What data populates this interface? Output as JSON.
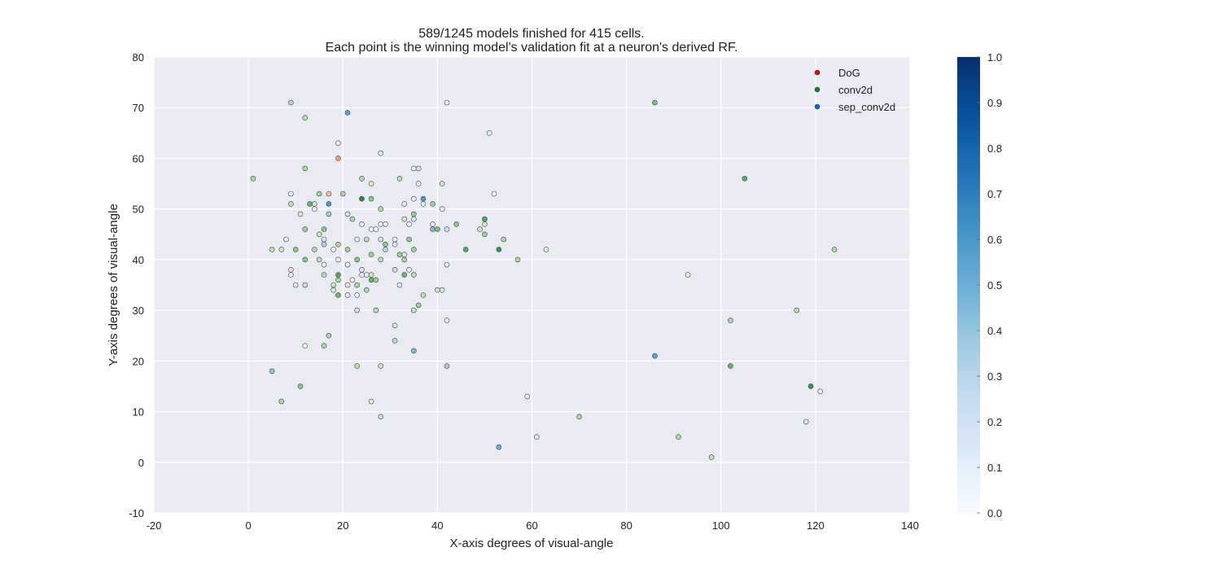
{
  "chart_data": {
    "type": "scatter",
    "title": "589/1245 models finished for 415 cells.",
    "subtitle": "Each point is the winning model's validation fit at a neuron's derived RF.",
    "xlabel": "X-axis degrees of visual-angle",
    "ylabel": "Y-axis degrees of visual-angle",
    "xlim": [
      -20,
      140
    ],
    "ylim": [
      -10,
      80
    ],
    "xticks": [
      -20,
      0,
      20,
      40,
      60,
      80,
      100,
      120,
      140
    ],
    "yticks": [
      -10,
      0,
      10,
      20,
      30,
      40,
      50,
      60,
      70,
      80
    ],
    "grid": true,
    "legend_position": "top-right",
    "colorbar": {
      "min": 0.0,
      "max": 1.0,
      "ticks": [
        "0.0",
        "0.1",
        "0.2",
        "0.3",
        "0.4",
        "0.5",
        "0.6",
        "0.7",
        "0.8",
        "0.9",
        "1.0"
      ],
      "colormap": "Blues"
    },
    "series": [
      {
        "name": "DoG",
        "colormap": "Reds",
        "legend_color": "#c0141a",
        "points": [
          {
            "x": 19,
            "y": 60,
            "v": 0.35
          },
          {
            "x": 17,
            "y": 53,
            "v": 0.25
          },
          {
            "x": 9,
            "y": 38,
            "v": 0.15
          },
          {
            "x": 21,
            "y": 35,
            "v": 0.12
          },
          {
            "x": 42,
            "y": 28,
            "v": 0.1
          }
        ]
      },
      {
        "name": "conv2d",
        "colormap": "Greens",
        "legend_color": "#1a7a35",
        "points": [
          {
            "x": 1,
            "y": 56,
            "v": 0.35
          },
          {
            "x": 12,
            "y": 68,
            "v": 0.3
          },
          {
            "x": 12,
            "y": 58,
            "v": 0.35
          },
          {
            "x": 13,
            "y": 51,
            "v": 0.55
          },
          {
            "x": 15,
            "y": 53,
            "v": 0.4
          },
          {
            "x": 14,
            "y": 51,
            "v": 0.2
          },
          {
            "x": 11,
            "y": 49,
            "v": 0.2
          },
          {
            "x": 9,
            "y": 51,
            "v": 0.3
          },
          {
            "x": 20,
            "y": 53,
            "v": 0.35
          },
          {
            "x": 24,
            "y": 56,
            "v": 0.35
          },
          {
            "x": 26,
            "y": 55,
            "v": 0.2
          },
          {
            "x": 24,
            "y": 52,
            "v": 0.75
          },
          {
            "x": 26,
            "y": 52,
            "v": 0.45
          },
          {
            "x": 28,
            "y": 50,
            "v": 0.35
          },
          {
            "x": 32,
            "y": 56,
            "v": 0.3
          },
          {
            "x": 35,
            "y": 49,
            "v": 0.4
          },
          {
            "x": 39,
            "y": 51,
            "v": 0.4
          },
          {
            "x": 41,
            "y": 55,
            "v": 0.25
          },
          {
            "x": 40,
            "y": 46,
            "v": 0.5
          },
          {
            "x": 44,
            "y": 47,
            "v": 0.45
          },
          {
            "x": 46,
            "y": 42,
            "v": 0.6
          },
          {
            "x": 50,
            "y": 48,
            "v": 0.6
          },
          {
            "x": 50,
            "y": 47,
            "v": 0.2
          },
          {
            "x": 49,
            "y": 46,
            "v": 0.25
          },
          {
            "x": 50,
            "y": 45,
            "v": 0.4
          },
          {
            "x": 54,
            "y": 44,
            "v": 0.35
          },
          {
            "x": 53,
            "y": 42,
            "v": 0.7
          },
          {
            "x": 57,
            "y": 40,
            "v": 0.35
          },
          {
            "x": 63,
            "y": 42,
            "v": 0.15
          },
          {
            "x": 5,
            "y": 42,
            "v": 0.3
          },
          {
            "x": 7,
            "y": 42,
            "v": 0.25
          },
          {
            "x": 10,
            "y": 42,
            "v": 0.45
          },
          {
            "x": 12,
            "y": 46,
            "v": 0.4
          },
          {
            "x": 15,
            "y": 45,
            "v": 0.25
          },
          {
            "x": 16,
            "y": 46,
            "v": 0.45
          },
          {
            "x": 12,
            "y": 40,
            "v": 0.45
          },
          {
            "x": 15,
            "y": 40,
            "v": 0.3
          },
          {
            "x": 14,
            "y": 42,
            "v": 0.35
          },
          {
            "x": 19,
            "y": 43,
            "v": 0.35
          },
          {
            "x": 22,
            "y": 48,
            "v": 0.35
          },
          {
            "x": 25,
            "y": 44,
            "v": 0.3
          },
          {
            "x": 26,
            "y": 41,
            "v": 0.4
          },
          {
            "x": 23,
            "y": 40,
            "v": 0.45
          },
          {
            "x": 21,
            "y": 42,
            "v": 0.4
          },
          {
            "x": 29,
            "y": 43,
            "v": 0.45
          },
          {
            "x": 28,
            "y": 40,
            "v": 0.3
          },
          {
            "x": 32,
            "y": 41,
            "v": 0.4
          },
          {
            "x": 33,
            "y": 40,
            "v": 0.35
          },
          {
            "x": 35,
            "y": 42,
            "v": 0.4
          },
          {
            "x": 34,
            "y": 44,
            "v": 0.45
          },
          {
            "x": 33,
            "y": 48,
            "v": 0.2
          },
          {
            "x": 19,
            "y": 37,
            "v": 0.6
          },
          {
            "x": 19,
            "y": 36,
            "v": 0.35
          },
          {
            "x": 18,
            "y": 35,
            "v": 0.25
          },
          {
            "x": 18,
            "y": 34,
            "v": 0.2
          },
          {
            "x": 19,
            "y": 33,
            "v": 0.55
          },
          {
            "x": 23,
            "y": 35,
            "v": 0.35
          },
          {
            "x": 25,
            "y": 34,
            "v": 0.35
          },
          {
            "x": 26,
            "y": 36,
            "v": 0.55
          },
          {
            "x": 27,
            "y": 36,
            "v": 0.4
          },
          {
            "x": 26,
            "y": 37,
            "v": 0.25
          },
          {
            "x": 27,
            "y": 30,
            "v": 0.3
          },
          {
            "x": 33,
            "y": 37,
            "v": 0.55
          },
          {
            "x": 35,
            "y": 37,
            "v": 0.3
          },
          {
            "x": 37,
            "y": 33,
            "v": 0.3
          },
          {
            "x": 36,
            "y": 31,
            "v": 0.4
          },
          {
            "x": 35,
            "y": 30,
            "v": 0.25
          },
          {
            "x": 40,
            "y": 34,
            "v": 0.25
          },
          {
            "x": 41,
            "y": 34,
            "v": 0.2
          },
          {
            "x": 31,
            "y": 27,
            "v": 0.2
          },
          {
            "x": 17,
            "y": 25,
            "v": 0.35
          },
          {
            "x": 16,
            "y": 23,
            "v": 0.35
          },
          {
            "x": 12,
            "y": 23,
            "v": 0.1
          },
          {
            "x": 11,
            "y": 15,
            "v": 0.45
          },
          {
            "x": 7,
            "y": 12,
            "v": 0.35
          },
          {
            "x": 23,
            "y": 19,
            "v": 0.3
          },
          {
            "x": 28,
            "y": 19,
            "v": 0.25
          },
          {
            "x": 26,
            "y": 12,
            "v": 0.15
          },
          {
            "x": 59,
            "y": 13,
            "v": 0.15
          },
          {
            "x": 70,
            "y": 9,
            "v": 0.35
          },
          {
            "x": 86,
            "y": 71,
            "v": 0.5
          },
          {
            "x": 105,
            "y": 56,
            "v": 0.6
          },
          {
            "x": 93,
            "y": 37,
            "v": 0.15
          },
          {
            "x": 102,
            "y": 28,
            "v": 0.35
          },
          {
            "x": 102,
            "y": 19,
            "v": 0.55
          },
          {
            "x": 116,
            "y": 30,
            "v": 0.3
          },
          {
            "x": 124,
            "y": 42,
            "v": 0.35
          },
          {
            "x": 119,
            "y": 15,
            "v": 0.7
          },
          {
            "x": 121,
            "y": 14,
            "v": 0.1
          },
          {
            "x": 91,
            "y": 5,
            "v": 0.35
          },
          {
            "x": 98,
            "y": 1,
            "v": 0.3
          }
        ]
      },
      {
        "name": "sep_conv2d",
        "colormap": "Blues",
        "legend_color": "#1a62b0",
        "points": [
          {
            "x": 9,
            "y": 71,
            "v": 0.3
          },
          {
            "x": 21,
            "y": 69,
            "v": 0.55
          },
          {
            "x": 42,
            "y": 71,
            "v": 0.1
          },
          {
            "x": 51,
            "y": 65,
            "v": 0.1
          },
          {
            "x": 19,
            "y": 63,
            "v": 0.05
          },
          {
            "x": 28,
            "y": 61,
            "v": 0.1
          },
          {
            "x": 35,
            "y": 58,
            "v": 0.1
          },
          {
            "x": 36,
            "y": 58,
            "v": 0.15
          },
          {
            "x": 36,
            "y": 55,
            "v": 0.05
          },
          {
            "x": 52,
            "y": 53,
            "v": 0.05
          },
          {
            "x": 9,
            "y": 53,
            "v": 0.05
          },
          {
            "x": 17,
            "y": 51,
            "v": 0.6
          },
          {
            "x": 17,
            "y": 49,
            "v": 0.35
          },
          {
            "x": 21,
            "y": 49,
            "v": 0.2
          },
          {
            "x": 14,
            "y": 50,
            "v": 0.05
          },
          {
            "x": 33,
            "y": 51,
            "v": 0.1
          },
          {
            "x": 35,
            "y": 52,
            "v": 0.05
          },
          {
            "x": 37,
            "y": 52,
            "v": 0.6
          },
          {
            "x": 37,
            "y": 51,
            "v": 0.1
          },
          {
            "x": 41,
            "y": 50,
            "v": 0.05
          },
          {
            "x": 35,
            "y": 48,
            "v": 0.1
          },
          {
            "x": 34,
            "y": 47,
            "v": 0.05
          },
          {
            "x": 39,
            "y": 47,
            "v": 0.1
          },
          {
            "x": 39,
            "y": 46,
            "v": 0.45
          },
          {
            "x": 42,
            "y": 46,
            "v": 0.2
          },
          {
            "x": 24,
            "y": 47,
            "v": 0.1
          },
          {
            "x": 26,
            "y": 46,
            "v": 0.05
          },
          {
            "x": 28,
            "y": 47,
            "v": 0.05
          },
          {
            "x": 29,
            "y": 47,
            "v": 0.05
          },
          {
            "x": 27,
            "y": 46,
            "v": 0.05
          },
          {
            "x": 8,
            "y": 44,
            "v": 0.1
          },
          {
            "x": 16,
            "y": 44,
            "v": 0.15
          },
          {
            "x": 16,
            "y": 43,
            "v": 0.3
          },
          {
            "x": 18,
            "y": 42,
            "v": 0.05
          },
          {
            "x": 19,
            "y": 40,
            "v": 0.1
          },
          {
            "x": 21,
            "y": 39,
            "v": 0.05
          },
          {
            "x": 23,
            "y": 44,
            "v": 0.1
          },
          {
            "x": 28,
            "y": 44,
            "v": 0.2
          },
          {
            "x": 29,
            "y": 42,
            "v": 0.3
          },
          {
            "x": 31,
            "y": 43,
            "v": 0.1
          },
          {
            "x": 31,
            "y": 44,
            "v": 0.05
          },
          {
            "x": 33,
            "y": 41,
            "v": 0.15
          },
          {
            "x": 16,
            "y": 39,
            "v": 0.05
          },
          {
            "x": 9,
            "y": 37,
            "v": 0.1
          },
          {
            "x": 16,
            "y": 37,
            "v": 0.3
          },
          {
            "x": 10,
            "y": 35,
            "v": 0.15
          },
          {
            "x": 12,
            "y": 35,
            "v": 0.25
          },
          {
            "x": 21,
            "y": 33,
            "v": 0.1
          },
          {
            "x": 22,
            "y": 36,
            "v": 0.05
          },
          {
            "x": 23,
            "y": 33,
            "v": 0.05
          },
          {
            "x": 24,
            "y": 37,
            "v": 0.1
          },
          {
            "x": 24,
            "y": 38,
            "v": 0.15
          },
          {
            "x": 25,
            "y": 37,
            "v": 0.1
          },
          {
            "x": 31,
            "y": 38,
            "v": 0.25
          },
          {
            "x": 32,
            "y": 35,
            "v": 0.15
          },
          {
            "x": 34,
            "y": 38,
            "v": 0.1
          },
          {
            "x": 42,
            "y": 39,
            "v": 0.05
          },
          {
            "x": 23,
            "y": 30,
            "v": 0.2
          },
          {
            "x": 31,
            "y": 24,
            "v": 0.3
          },
          {
            "x": 35,
            "y": 22,
            "v": 0.45
          },
          {
            "x": 42,
            "y": 19,
            "v": 0.35
          },
          {
            "x": 5,
            "y": 18,
            "v": 0.4
          },
          {
            "x": 28,
            "y": 9,
            "v": 0.25
          },
          {
            "x": 53,
            "y": 3,
            "v": 0.5
          },
          {
            "x": 61,
            "y": 5,
            "v": 0.15
          },
          {
            "x": 86,
            "y": 21,
            "v": 0.55
          },
          {
            "x": 118,
            "y": 8,
            "v": 0.15
          }
        ]
      }
    ]
  }
}
